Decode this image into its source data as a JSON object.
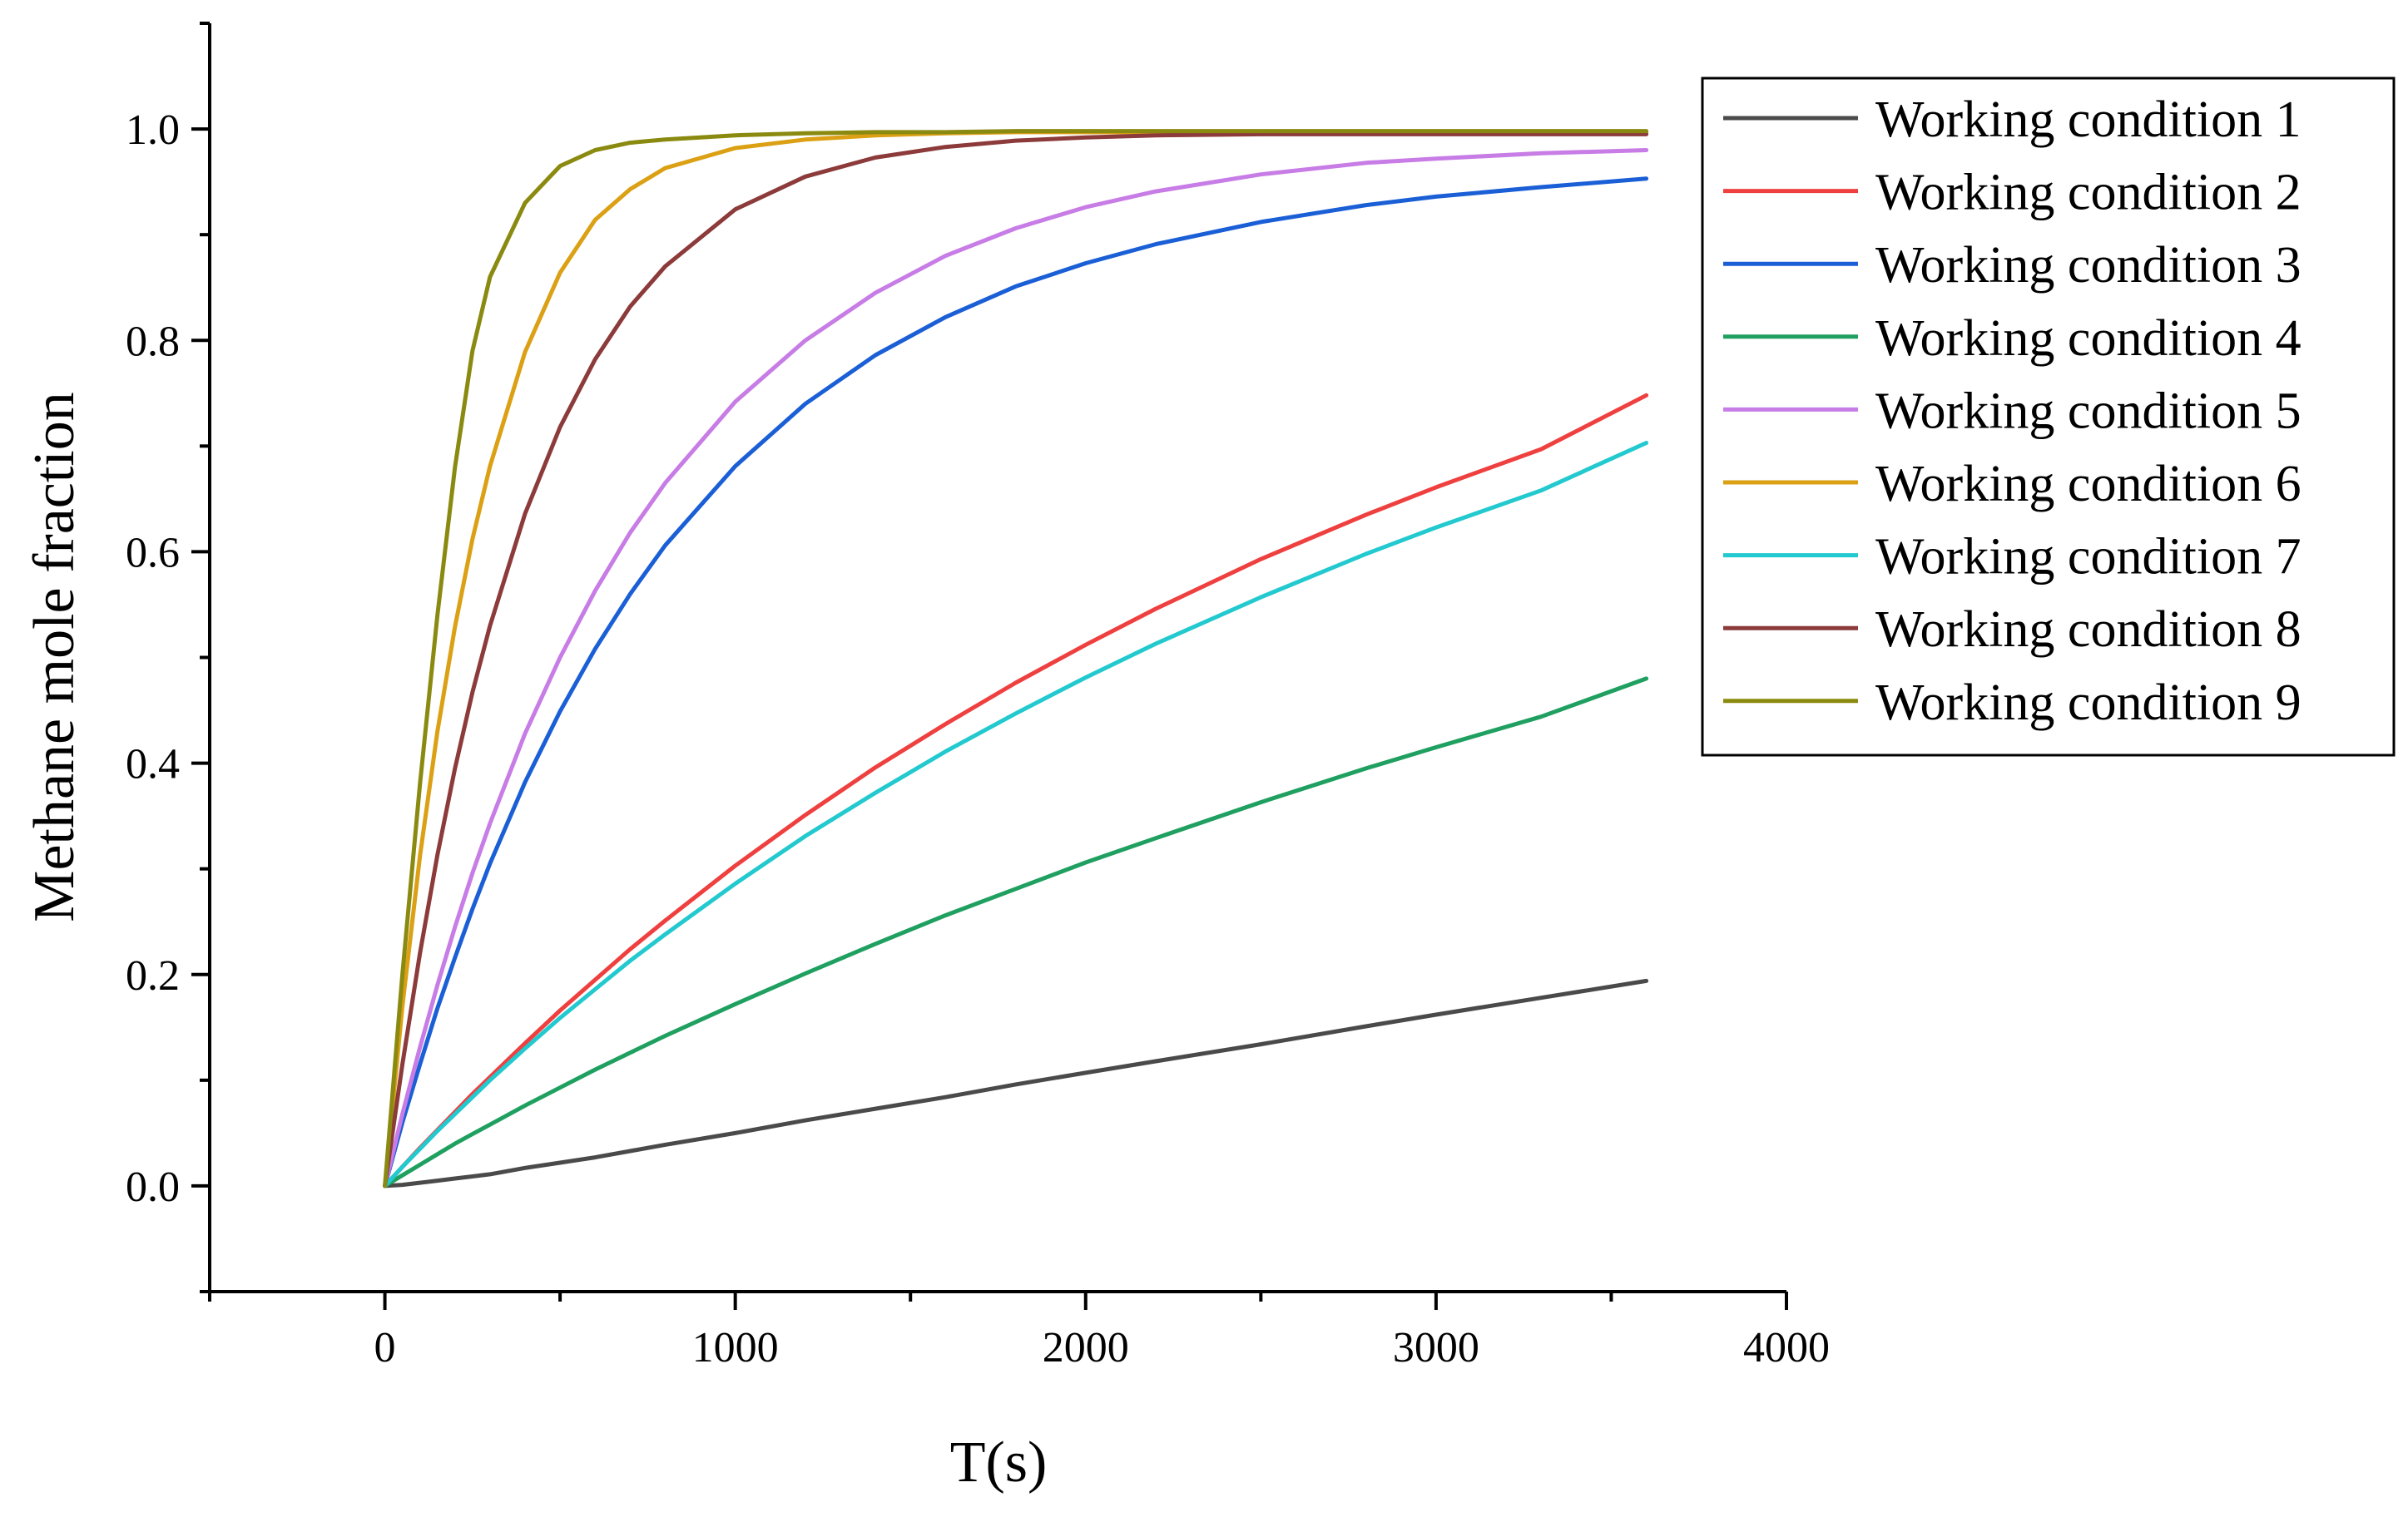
{
  "chart_data": {
    "type": "line",
    "title": "",
    "xlabel": "T(s)",
    "ylabel": "Methane mole fraction",
    "xlim": [
      -500,
      4000
    ],
    "ylim": [
      -0.1,
      1.1
    ],
    "xticks": [
      0,
      1000,
      2000,
      3000,
      4000
    ],
    "xtick_labels": [
      "0",
      "1000",
      "2000",
      "3000",
      "4000"
    ],
    "yticks": [
      0.0,
      0.2,
      0.4,
      0.6,
      0.8,
      1.0
    ],
    "ytick_labels": [
      "0.0",
      "0.2",
      "0.4",
      "0.6",
      "0.8",
      "1.0"
    ],
    "grid": false,
    "legend_position": "top-right",
    "x": [
      0,
      50,
      100,
      150,
      200,
      250,
      300,
      400,
      500,
      600,
      700,
      800,
      1000,
      1200,
      1400,
      1600,
      1800,
      2000,
      2200,
      2500,
      2800,
      3000,
      3300,
      3600
    ],
    "series": [
      {
        "name": "Working condition 1",
        "color": "#4a4a4a",
        "values": [
          0,
          0.001,
          0.003,
          0.005,
          0.007,
          0.009,
          0.011,
          0.017,
          0.022,
          0.027,
          0.033,
          0.039,
          0.05,
          0.062,
          0.073,
          0.084,
          0.096,
          0.107,
          0.118,
          0.134,
          0.151,
          0.162,
          0.178,
          0.194
        ]
      },
      {
        "name": "Working condition 2",
        "color": "#ef4040",
        "values": [
          0,
          0.018,
          0.036,
          0.053,
          0.07,
          0.087,
          0.103,
          0.135,
          0.166,
          0.195,
          0.224,
          0.251,
          0.303,
          0.351,
          0.396,
          0.437,
          0.476,
          0.512,
          0.546,
          0.593,
          0.635,
          0.661,
          0.697,
          0.748
        ]
      },
      {
        "name": "Working condition 3",
        "color": "#1a5fd6",
        "values": [
          0,
          0.06,
          0.115,
          0.168,
          0.216,
          0.262,
          0.305,
          0.382,
          0.449,
          0.508,
          0.56,
          0.606,
          0.681,
          0.74,
          0.786,
          0.822,
          0.851,
          0.873,
          0.891,
          0.912,
          0.928,
          0.936,
          0.945,
          0.953
        ]
      },
      {
        "name": "Working condition 4",
        "color": "#1fa060",
        "values": [
          0,
          0.01,
          0.02,
          0.03,
          0.04,
          0.049,
          0.058,
          0.076,
          0.093,
          0.11,
          0.126,
          0.142,
          0.172,
          0.201,
          0.229,
          0.256,
          0.281,
          0.306,
          0.329,
          0.363,
          0.395,
          0.415,
          0.444,
          0.48
        ]
      },
      {
        "name": "Working condition 5",
        "color": "#c77ce6",
        "values": [
          0,
          0.068,
          0.131,
          0.19,
          0.245,
          0.296,
          0.343,
          0.428,
          0.5,
          0.563,
          0.618,
          0.665,
          0.742,
          0.8,
          0.845,
          0.88,
          0.906,
          0.926,
          0.941,
          0.957,
          0.968,
          0.972,
          0.977,
          0.98
        ]
      },
      {
        "name": "Working condition 6",
        "color": "#dba014",
        "values": [
          0,
          0.17,
          0.312,
          0.43,
          0.529,
          0.612,
          0.681,
          0.789,
          0.864,
          0.914,
          0.943,
          0.963,
          0.982,
          0.99,
          0.994,
          0.996,
          0.997,
          0.997,
          0.997,
          0.997,
          0.997,
          0.997,
          0.997,
          0.997
        ]
      },
      {
        "name": "Working condition 7",
        "color": "#22c9cf",
        "values": [
          0,
          0.018,
          0.035,
          0.052,
          0.068,
          0.084,
          0.1,
          0.13,
          0.159,
          0.186,
          0.213,
          0.238,
          0.286,
          0.331,
          0.372,
          0.411,
          0.447,
          0.481,
          0.513,
          0.557,
          0.598,
          0.623,
          0.658,
          0.703
        ]
      },
      {
        "name": "Working condition 8",
        "color": "#8c3a3a",
        "values": [
          0,
          0.115,
          0.22,
          0.313,
          0.395,
          0.467,
          0.53,
          0.636,
          0.718,
          0.782,
          0.832,
          0.87,
          0.924,
          0.955,
          0.973,
          0.983,
          0.989,
          0.992,
          0.994,
          0.995,
          0.995,
          0.995,
          0.995,
          0.995
        ]
      },
      {
        "name": "Working condition 9",
        "color": "#8a8a10",
        "values": [
          0,
          0.2,
          0.38,
          0.54,
          0.68,
          0.79,
          0.86,
          0.93,
          0.965,
          0.98,
          0.987,
          0.99,
          0.994,
          0.996,
          0.997,
          0.997,
          0.998,
          0.998,
          0.998,
          0.998,
          0.998,
          0.998,
          0.998,
          0.998
        ]
      }
    ]
  }
}
